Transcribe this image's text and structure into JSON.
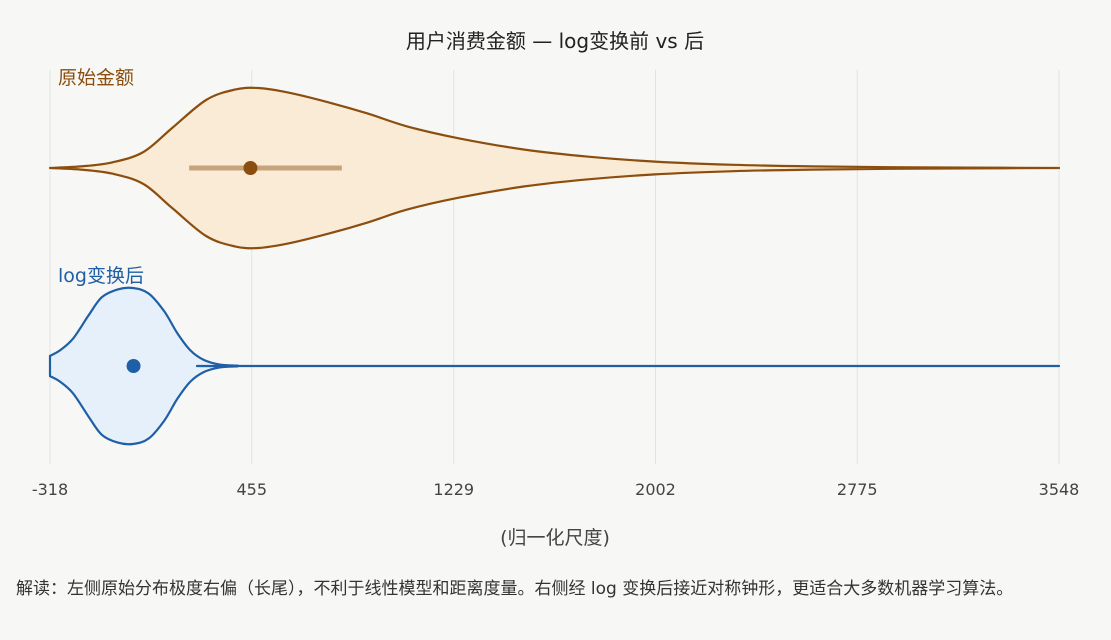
{
  "chart_data": {
    "type": "violin",
    "title": "用户消费金额 — log变换前 vs 后",
    "xlabel": "(归一化尺度)",
    "xlim": [
      -318,
      3548
    ],
    "x_ticks": [
      -318,
      455,
      1229,
      2002,
      2775,
      3548
    ],
    "x_tick_labels": [
      "-318",
      "455",
      "1229",
      "2002",
      "2775",
      "3548"
    ],
    "grid": true,
    "series": [
      {
        "name": "原始金额",
        "color": "#8B4E0E",
        "fill": "#faebd7",
        "median": 450,
        "iqr": [
          215,
          800
        ],
        "density": [
          [
            -318,
            0.0
          ],
          [
            -200,
            0.02
          ],
          [
            -80,
            0.07
          ],
          [
            40,
            0.2
          ],
          [
            150,
            0.5
          ],
          [
            280,
            0.85
          ],
          [
            390,
            0.98
          ],
          [
            480,
            1.0
          ],
          [
            600,
            0.94
          ],
          [
            750,
            0.82
          ],
          [
            900,
            0.68
          ],
          [
            1050,
            0.52
          ],
          [
            1250,
            0.37
          ],
          [
            1500,
            0.23
          ],
          [
            1750,
            0.14
          ],
          [
            2000,
            0.08
          ],
          [
            2300,
            0.04
          ],
          [
            2600,
            0.02
          ],
          [
            2900,
            0.01
          ],
          [
            3200,
            0.005
          ],
          [
            3548,
            0.0
          ]
        ]
      },
      {
        "name": "log变换后",
        "color": "#1f5fa6",
        "fill": "#e6f0fb",
        "median": 2,
        "density": [
          [
            -318,
            0.13
          ],
          [
            -280,
            0.2
          ],
          [
            -230,
            0.35
          ],
          [
            -170,
            0.65
          ],
          [
            -120,
            0.88
          ],
          [
            -60,
            0.98
          ],
          [
            0,
            1.0
          ],
          [
            60,
            0.93
          ],
          [
            120,
            0.7
          ],
          [
            170,
            0.42
          ],
          [
            220,
            0.2
          ],
          [
            270,
            0.08
          ],
          [
            330,
            0.02
          ],
          [
            400,
            0.005
          ],
          [
            500,
            0.0
          ],
          [
            3548,
            0.0
          ]
        ]
      }
    ]
  },
  "caption": "解读：左侧原始分布极度右偏（长尾），不利于线性模型和距离度量。右侧经 log 变换后接近对称钟形，更适合大多数机器学习算法。"
}
